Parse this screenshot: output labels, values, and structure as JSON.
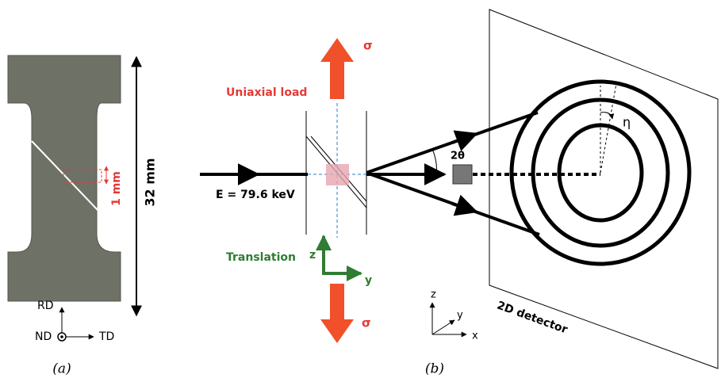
{
  "panel_a": {
    "length_label": "32 mm",
    "gauge_label": "1 mm",
    "axes": {
      "rd": "RD",
      "nd": "ND",
      "td": "TD"
    },
    "caption": "(a)"
  },
  "panel_b": {
    "load_label": "Uniaxial load",
    "sigma_top": "σ",
    "sigma_bottom": "σ",
    "energy_label": "E = 79.6 keV",
    "two_theta": "2θ",
    "eta": "η",
    "translation_label": "Translation",
    "translation_axes": {
      "z": "z",
      "y": "y"
    },
    "lab_axes": {
      "z": "z",
      "y": "y",
      "x": "x"
    },
    "detector_label": "2D detector",
    "caption": "(b)"
  }
}
